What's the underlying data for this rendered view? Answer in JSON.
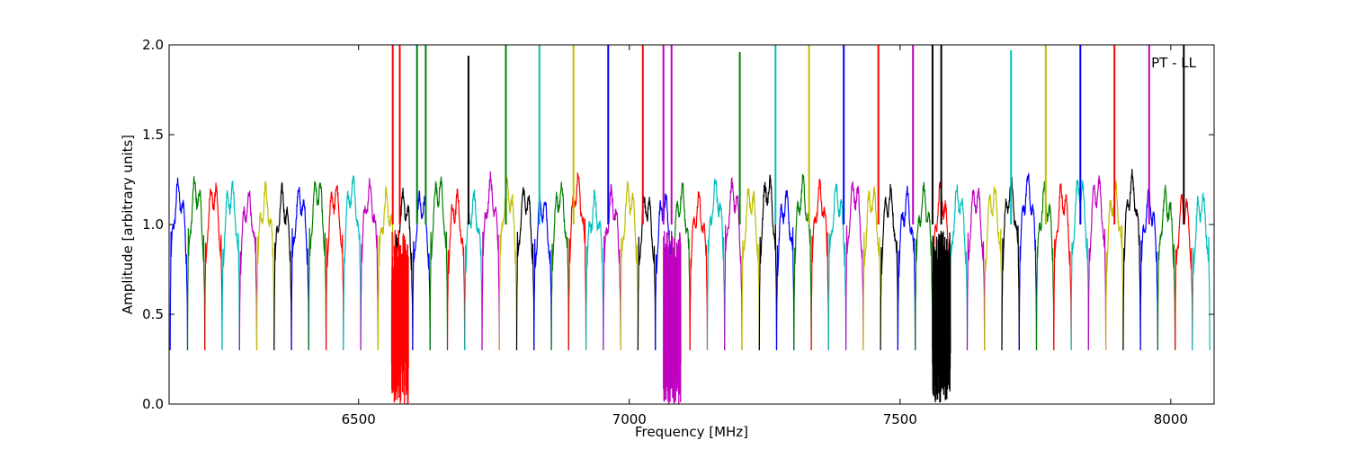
{
  "chart_data": {
    "type": "line",
    "xlabel": "Frequency [MHz]",
    "ylabel": "Amplitude [arbitrary units]",
    "annotation": "PT - LL",
    "xlim": [
      6150,
      8080
    ],
    "ylim": [
      0.0,
      2.0
    ],
    "xticks": [
      6500,
      7000,
      7500,
      8000
    ],
    "yticks": [
      0.0,
      0.5,
      1.0,
      1.5,
      2.0
    ],
    "xtick_labels": [
      "6500",
      "7000",
      "7500",
      "8000"
    ],
    "ytick_labels": [
      "0.0",
      "0.5",
      "1.0",
      "1.5",
      "2.0"
    ],
    "grid": false,
    "color_cycle": [
      "#0000ff",
      "#008000",
      "#ff0000",
      "#00bfbf",
      "#bf00bf",
      "#bfbf00",
      "#000000"
    ],
    "channel_start_mhz": 6152,
    "channel_width_mhz": 32,
    "channel_count": 60,
    "band_level": 1.15,
    "edge_dip_level": 0.3,
    "spikes": [
      {
        "x": 6563,
        "peak": 2.0,
        "color": "#ff0000"
      },
      {
        "x": 6576,
        "peak": 2.0,
        "color": "#ff0000"
      },
      {
        "x": 6608,
        "peak": 2.0,
        "color": "#008000"
      },
      {
        "x": 6624,
        "peak": 2.0,
        "color": "#008000"
      },
      {
        "x": 6703,
        "peak": 1.94,
        "color": "#000000"
      },
      {
        "x": 6772,
        "peak": 2.0,
        "color": "#008000"
      },
      {
        "x": 6834,
        "peak": 2.0,
        "color": "#00bfbf"
      },
      {
        "x": 6897,
        "peak": 2.0,
        "color": "#bfbf00"
      },
      {
        "x": 6961,
        "peak": 2.0,
        "color": "#0000ff"
      },
      {
        "x": 7025,
        "peak": 2.0,
        "color": "#ff0000"
      },
      {
        "x": 7063,
        "peak": 2.0,
        "color": "#bf00bf"
      },
      {
        "x": 7078,
        "peak": 2.0,
        "color": "#bf00bf"
      },
      {
        "x": 7204,
        "peak": 1.96,
        "color": "#008000"
      },
      {
        "x": 7270,
        "peak": 2.0,
        "color": "#00bfbf"
      },
      {
        "x": 7332,
        "peak": 2.0,
        "color": "#bfbf00"
      },
      {
        "x": 7396,
        "peak": 2.0,
        "color": "#0000ff"
      },
      {
        "x": 7460,
        "peak": 2.0,
        "color": "#ff0000"
      },
      {
        "x": 7524,
        "peak": 2.0,
        "color": "#bf00bf"
      },
      {
        "x": 7560,
        "peak": 2.0,
        "color": "#000000"
      },
      {
        "x": 7576,
        "peak": 2.0,
        "color": "#000000"
      },
      {
        "x": 7705,
        "peak": 1.97,
        "color": "#00bfbf"
      },
      {
        "x": 7769,
        "peak": 2.0,
        "color": "#bfbf00"
      },
      {
        "x": 7833,
        "peak": 2.0,
        "color": "#0000ff"
      },
      {
        "x": 7896,
        "peak": 2.0,
        "color": "#ff0000"
      },
      {
        "x": 7960,
        "peak": 2.0,
        "color": "#bf00bf"
      },
      {
        "x": 8024,
        "peak": 2.0,
        "color": "#000000"
      }
    ],
    "noise_bands": [
      {
        "x_range": [
          6561,
          6592
        ],
        "y_range": [
          0.0,
          0.97
        ],
        "color": "#ff0000"
      },
      {
        "x_range": [
          7063,
          7095
        ],
        "y_range": [
          0.0,
          0.97
        ],
        "color": "#bf00bf"
      },
      {
        "x_range": [
          7560,
          7593
        ],
        "y_range": [
          0.0,
          0.97
        ],
        "color": "#000000"
      }
    ]
  }
}
